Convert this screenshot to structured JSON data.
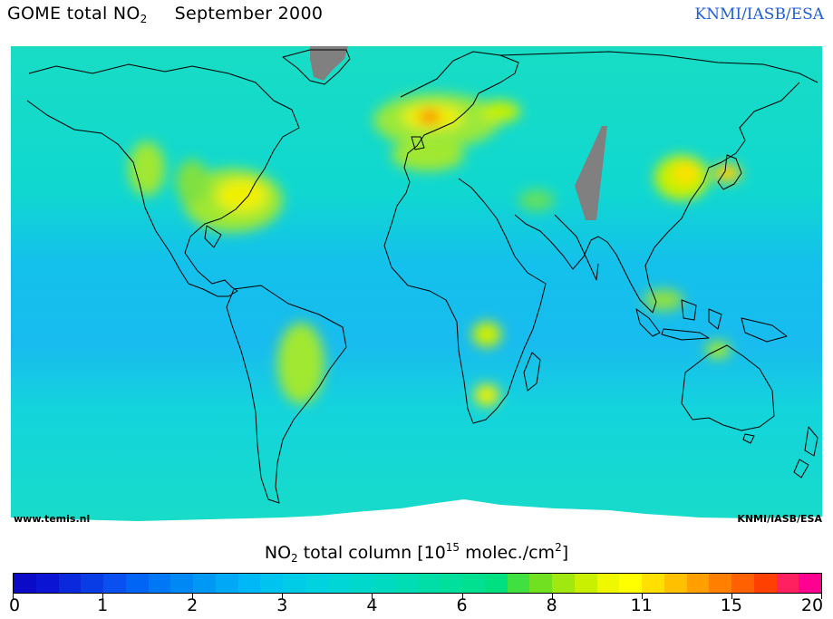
{
  "header": {
    "title_text": "GOME total NO",
    "title_sub": "2",
    "title_date": "September 2000",
    "credit": "KNMI/IASB/ESA"
  },
  "map": {
    "url_label": "www.temis.nl",
    "credit_label": "KNMI/IASB/ESA",
    "colors": {
      "background_field": "#14e0d2",
      "no_data": "#808080",
      "coastline": "#000000"
    }
  },
  "legend": {
    "title_prefix": "NO",
    "title_sub": "2",
    "title_mid": " total column [10",
    "title_sup1": "15",
    "title_after": " molec./cm",
    "title_sup2": "2",
    "title_end": "]",
    "tick_labels": [
      "0",
      "1",
      "2",
      "3",
      "4",
      "6",
      "8",
      "11",
      "15",
      "20"
    ],
    "segments": [
      "#0a0ac8",
      "#0a14d2",
      "#0a28dc",
      "#0a3ce6",
      "#0a50f0",
      "#0064f5",
      "#0078f5",
      "#0088f5",
      "#0098f5",
      "#00a8f5",
      "#00b8f5",
      "#00c4f0",
      "#00cce8",
      "#00d2e0",
      "#00d6d6",
      "#00d8cc",
      "#00dac0",
      "#00dcb4",
      "#00dea8",
      "#00e09c",
      "#00e090",
      "#00e080",
      "#40e040",
      "#70e020",
      "#a0e810",
      "#c8f000",
      "#f0f800",
      "#ffff00",
      "#ffe000",
      "#ffc000",
      "#ffa000",
      "#ff8000",
      "#ff6000",
      "#ff4000",
      "#ff2060",
      "#ff0090"
    ]
  }
}
